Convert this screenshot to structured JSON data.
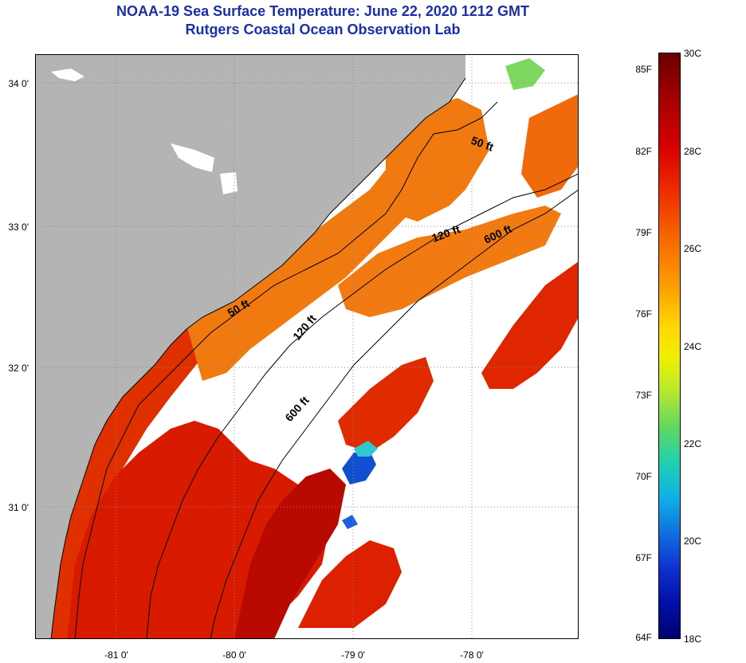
{
  "titles": {
    "line1": "NOAA-19 Sea Surface Temperature:  June 22, 2020 1212 GMT",
    "line2": "Rutgers Coastal Ocean Observation Lab"
  },
  "axes": {
    "y_labels": [
      "34 0'",
      "33 0'",
      "32 0'",
      "31 0'"
    ],
    "x_labels": [
      "-81 0'",
      "-80 0'",
      "-79 0'",
      "-78 0'"
    ]
  },
  "contours": {
    "label_50a": "50 ft",
    "label_50b": "50 ft",
    "label_120a": "120 ft",
    "label_120b": "120 ft",
    "label_600a": "600 ft",
    "label_600b": "600 ft"
  },
  "colorbar": {
    "fahrenheit": [
      "85F",
      "82F",
      "79F",
      "76F",
      "73F",
      "70F",
      "67F",
      "64F"
    ],
    "celsius": [
      "30C",
      "28C",
      "26C",
      "24C",
      "22C",
      "20C",
      "18C"
    ]
  },
  "colors": {
    "land": "#b4b4b4",
    "cloud": "#ffffff",
    "title": "#1a2fa8",
    "warm": "#e02a00",
    "hot": "#c80a00",
    "orange": "#f07a10",
    "cool": "#1060d0"
  }
}
